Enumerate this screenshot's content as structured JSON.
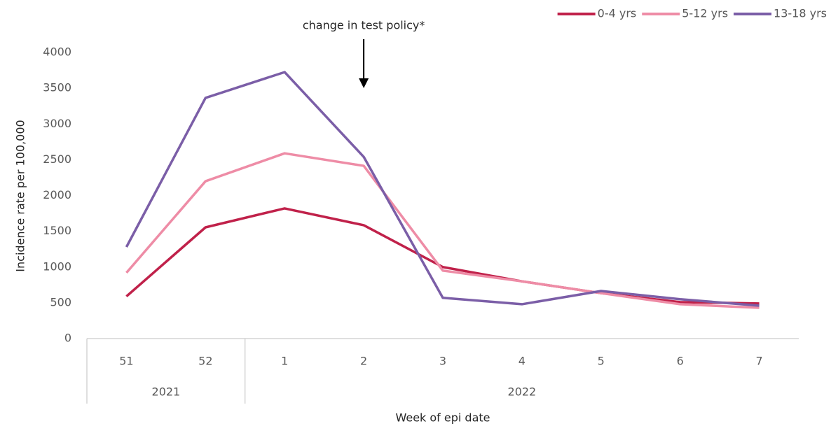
{
  "chart_data": {
    "type": "line",
    "y_label": "Incidence rate per 100,000",
    "x_label": "Week of epi date",
    "annotation": {
      "text": "change in test policy*",
      "at": "2"
    },
    "categories": [
      "51",
      "52",
      "1",
      "2",
      "3",
      "4",
      "5",
      "6",
      "7"
    ],
    "years": [
      "2021",
      "2021",
      "2022",
      "2022",
      "2022",
      "2022",
      "2022",
      "2022",
      "2022"
    ],
    "series": [
      {
        "name": "0-4 yrs",
        "color": "#c0214a",
        "values": [
          590,
          1555,
          1820,
          1585,
          1000,
          800,
          635,
          510,
          490
        ]
      },
      {
        "name": "5-12 yrs",
        "color": "#ee8ca6",
        "values": [
          920,
          2200,
          2590,
          2415,
          950,
          800,
          635,
          480,
          430
        ]
      },
      {
        "name": "13-18 yrs",
        "color": "#7b5ea7",
        "values": [
          1280,
          3365,
          3725,
          2540,
          570,
          480,
          665,
          550,
          460
        ]
      }
    ],
    "ylim": [
      0,
      4000
    ],
    "yticks": [
      0,
      500,
      1000,
      1500,
      2000,
      2500,
      3000,
      3500,
      4000
    ],
    "grid": false,
    "legend": "top-right"
  }
}
